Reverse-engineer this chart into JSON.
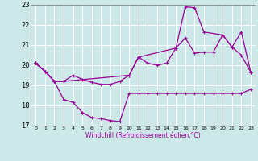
{
  "title": "",
  "xlabel": "Windchill (Refroidissement éolien,°C)",
  "bg_color": "#cce8e8",
  "grid_color": "#ffffff",
  "line_color": "#990099",
  "xlim": [
    -0.5,
    23.5
  ],
  "ylim": [
    17,
    23
  ],
  "yticks": [
    17,
    18,
    19,
    20,
    21,
    22,
    23
  ],
  "xticks": [
    0,
    1,
    2,
    3,
    4,
    5,
    6,
    7,
    8,
    9,
    10,
    11,
    12,
    13,
    14,
    15,
    16,
    17,
    18,
    19,
    20,
    21,
    22,
    23
  ],
  "series1_x": [
    0,
    1,
    2,
    3,
    4,
    5,
    6,
    7,
    8,
    9,
    10,
    11,
    12,
    13,
    14,
    15,
    16,
    17,
    18,
    19,
    20,
    21,
    22,
    23
  ],
  "series1_y": [
    20.1,
    19.7,
    19.2,
    18.3,
    18.15,
    17.65,
    17.4,
    17.35,
    17.25,
    17.2,
    18.6,
    18.6,
    18.6,
    18.6,
    18.6,
    18.6,
    18.6,
    18.6,
    18.6,
    18.6,
    18.6,
    18.6,
    18.6,
    18.8
  ],
  "series2_x": [
    0,
    1,
    2,
    3,
    4,
    5,
    6,
    7,
    8,
    9,
    10,
    11,
    12,
    13,
    14,
    15,
    16,
    17,
    18,
    19,
    20,
    21,
    22,
    23
  ],
  "series2_y": [
    20.1,
    19.7,
    19.2,
    19.2,
    19.5,
    19.3,
    19.15,
    19.05,
    19.05,
    19.2,
    19.5,
    20.4,
    20.1,
    20.0,
    20.1,
    20.85,
    21.35,
    20.6,
    20.65,
    20.65,
    21.5,
    20.9,
    20.5,
    19.65
  ],
  "series3_x": [
    0,
    1,
    2,
    3,
    10,
    11,
    15,
    16,
    17,
    18,
    20,
    21,
    22,
    23
  ],
  "series3_y": [
    20.1,
    19.7,
    19.2,
    19.2,
    19.5,
    20.4,
    20.85,
    22.9,
    22.85,
    21.65,
    21.5,
    20.9,
    21.65,
    19.65
  ]
}
